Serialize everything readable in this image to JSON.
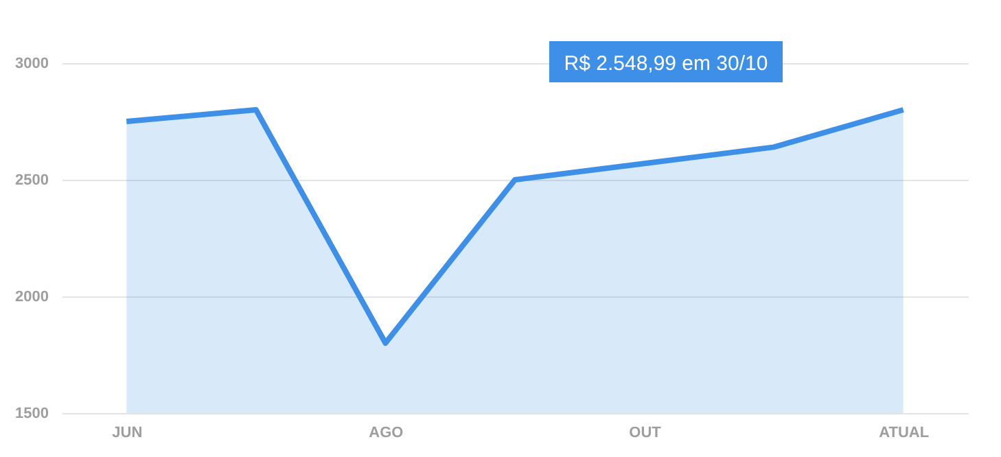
{
  "chart_data": {
    "type": "area",
    "categories": [
      "JUN",
      null,
      "AGO",
      null,
      "OUT",
      null,
      "ATUAL"
    ],
    "series": [
      {
        "color": "#3d8fe8",
        "values": [
          2750,
          2800,
          1800,
          2500,
          2570,
          2640,
          2800
        ]
      }
    ],
    "ylim": [
      1500,
      3000
    ],
    "yticks": [
      1500,
      2000,
      2500,
      3000
    ],
    "grid": "y",
    "annotations": [
      "R$ 2.548,99 em 30/10"
    ]
  }
}
